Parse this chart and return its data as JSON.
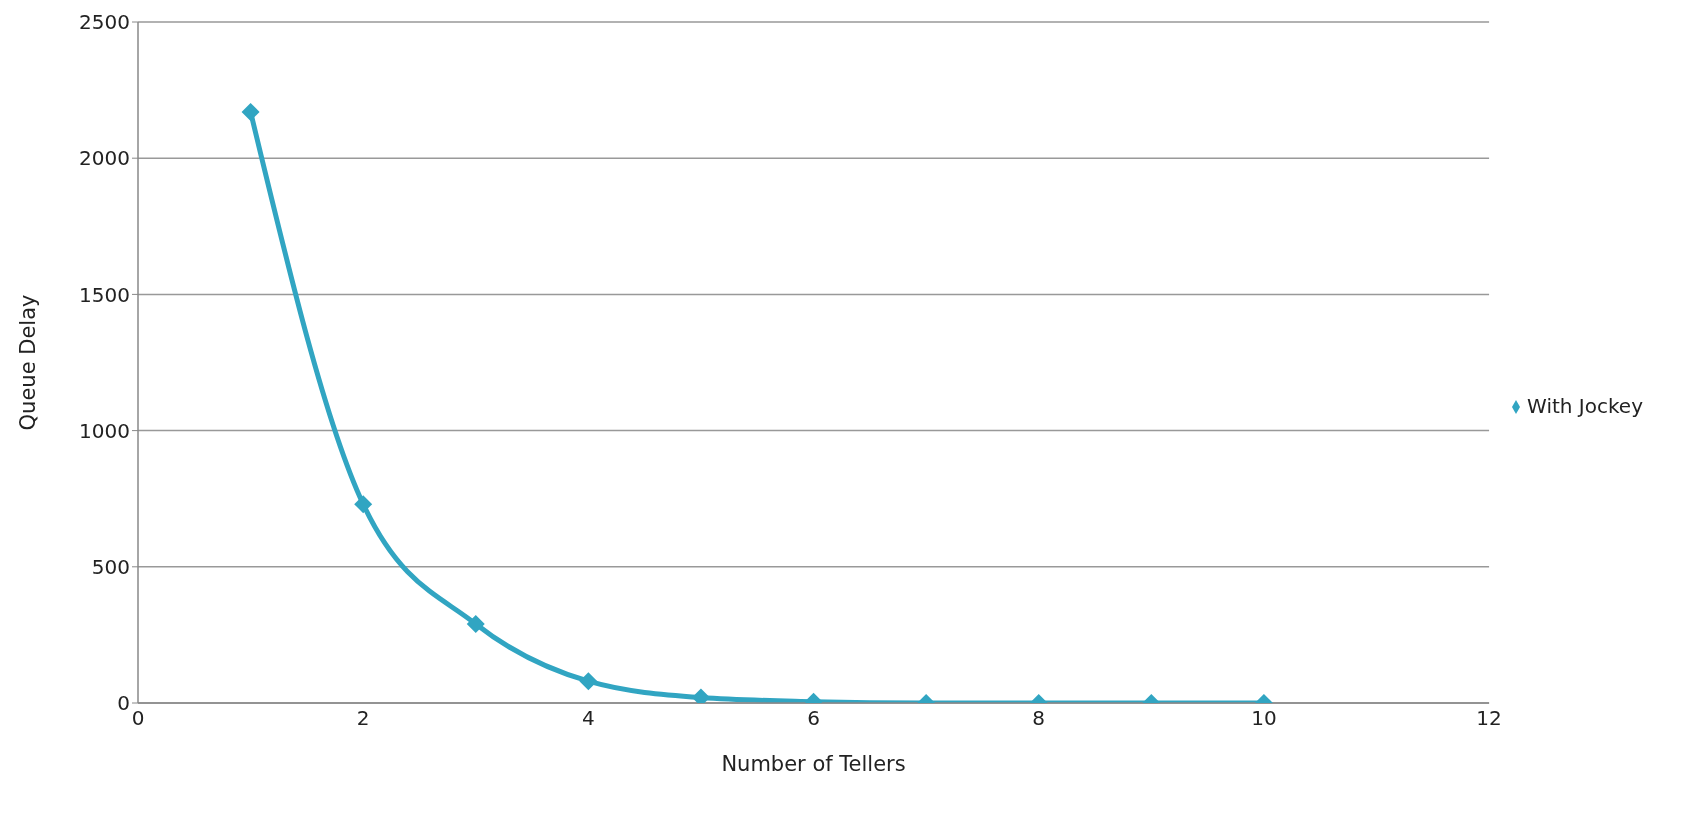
{
  "chart_data": {
    "type": "line",
    "xlabel": "Number of Tellers",
    "ylabel": "Queue Delay",
    "x": [
      1,
      2,
      3,
      4,
      5,
      6,
      7,
      8,
      9,
      10
    ],
    "series": [
      {
        "name": "With Jockey",
        "color": "#31a5c2",
        "values": [
          2170,
          730,
          290,
          80,
          20,
          5,
          0,
          0,
          0,
          0
        ]
      }
    ],
    "xlim": [
      0,
      12
    ],
    "xticks": [
      0,
      2,
      4,
      6,
      8,
      10,
      12
    ],
    "ylim": [
      0,
      2500
    ],
    "yticks": [
      0,
      500,
      1000,
      1500,
      2000,
      2500
    ],
    "grid": "y",
    "legend": "right",
    "marker": "diamond",
    "line_style": "solid"
  }
}
